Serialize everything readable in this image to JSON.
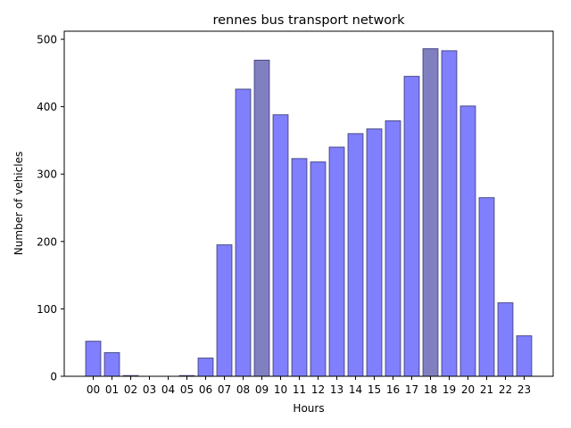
{
  "chart_data": {
    "type": "bar",
    "title": "rennes bus transport network",
    "xlabel": "Hours",
    "ylabel": "Number of vehicles",
    "categories": [
      "00",
      "01",
      "02",
      "03",
      "04",
      "05",
      "06",
      "07",
      "08",
      "09",
      "10",
      "11",
      "12",
      "13",
      "14",
      "15",
      "16",
      "17",
      "18",
      "19",
      "20",
      "21",
      "22",
      "23"
    ],
    "values": [
      52,
      35,
      1,
      0,
      0,
      1,
      27,
      195,
      426,
      469,
      388,
      323,
      318,
      340,
      360,
      367,
      379,
      445,
      486,
      483,
      401,
      265,
      109,
      60
    ],
    "highlighted": [
      "09",
      "18"
    ],
    "ylim": [
      0,
      512
    ],
    "yticks": [
      0,
      100,
      200,
      300,
      400,
      500
    ],
    "grid": false,
    "colors": {
      "bar": "#8080ff",
      "bar_highlight": "#8080c0",
      "bar_edge": "#4a4a8a",
      "axis": "#000000"
    }
  }
}
